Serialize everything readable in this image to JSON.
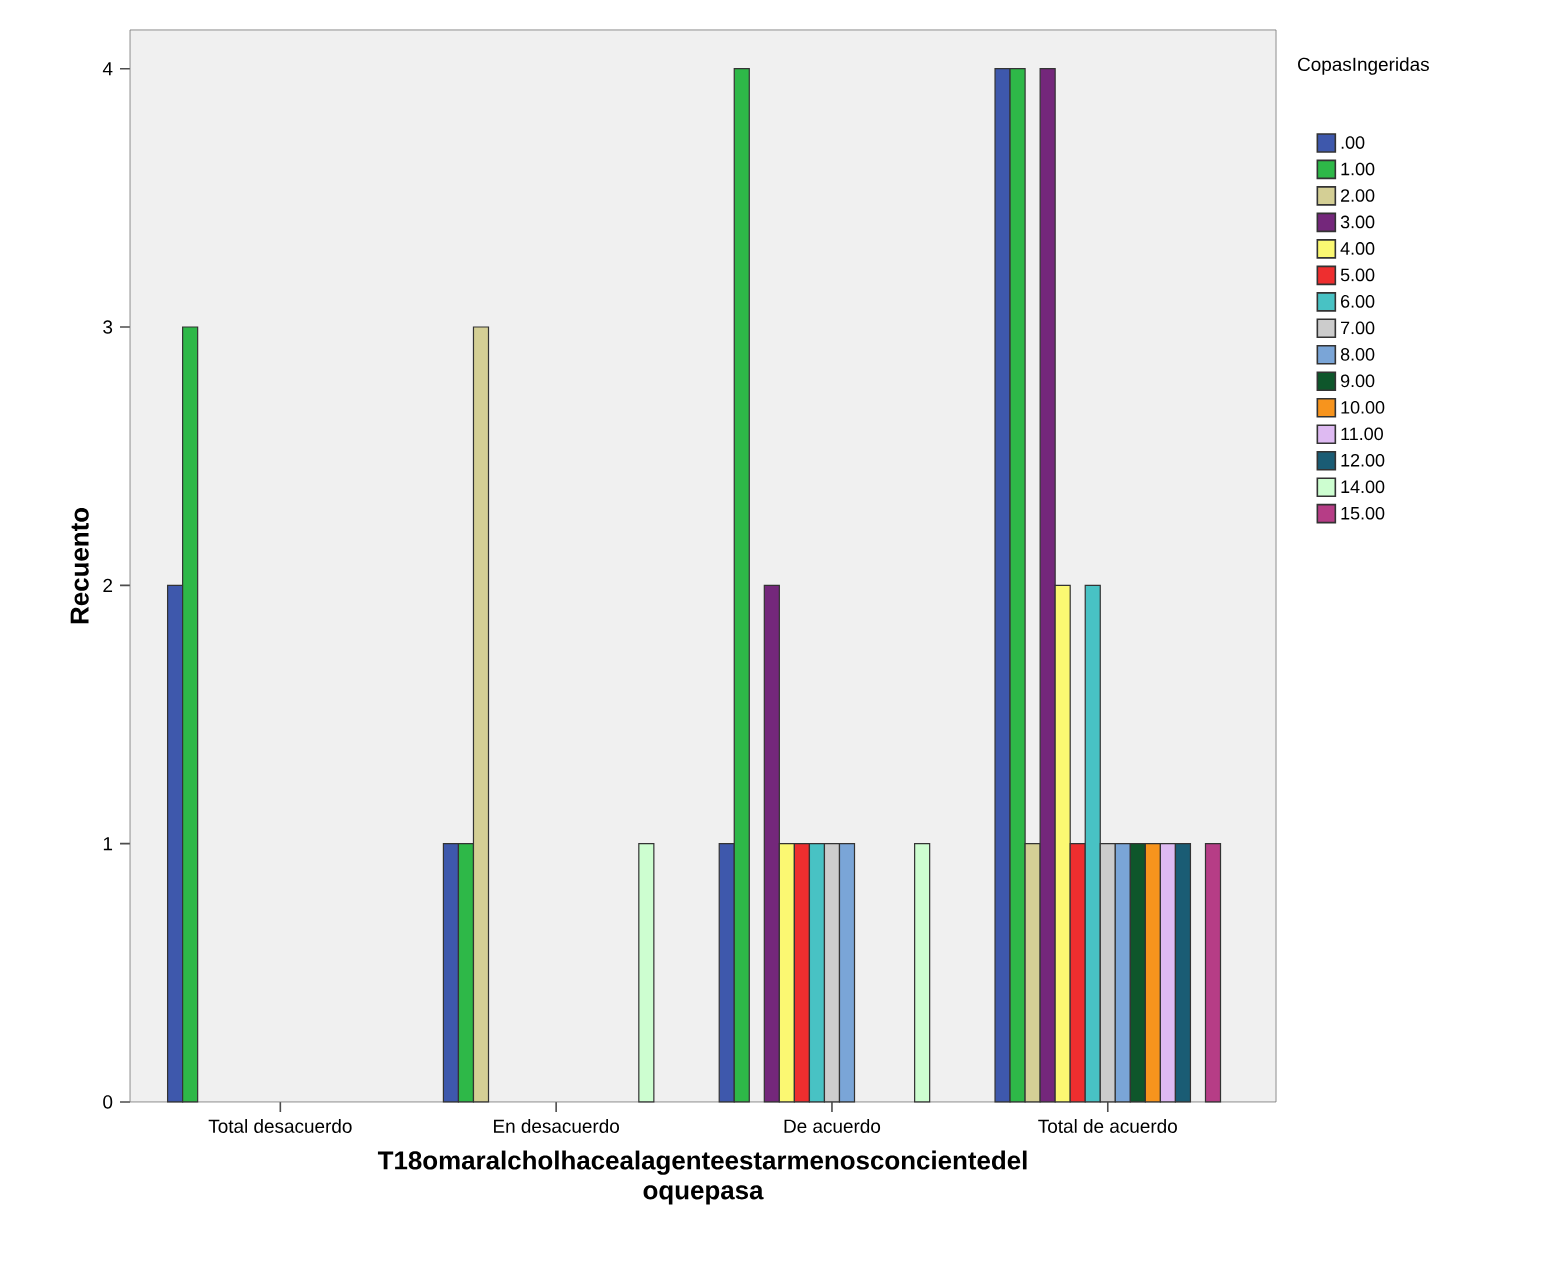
{
  "chart_data": {
    "type": "bar",
    "xlabel": "T18omaralcholhacealagenteestarmenosconcientedel oquepasa",
    "ylabel": "Recuento",
    "legend_title": "CopasIngeridas",
    "categories": [
      "Total desacuerdo",
      "En desacuerdo",
      "De acuerdo",
      "Total de acuerdo"
    ],
    "ylim": [
      0,
      4.15
    ],
    "yticks": [
      0,
      1,
      2,
      3,
      4
    ],
    "legend": "right",
    "grid": false,
    "series": [
      {
        "name": ".00",
        "color": "#3e58ac",
        "values": [
          2,
          1,
          1,
          4
        ]
      },
      {
        "name": "1.00",
        "color": "#2eb848",
        "values": [
          3,
          1,
          4,
          4
        ]
      },
      {
        "name": "2.00",
        "color": "#d4cf95",
        "values": [
          null,
          3,
          null,
          1
        ]
      },
      {
        "name": "3.00",
        "color": "#74277b",
        "values": [
          null,
          null,
          2,
          4
        ]
      },
      {
        "name": "4.00",
        "color": "#fbf872",
        "values": [
          null,
          null,
          1,
          2
        ]
      },
      {
        "name": "5.00",
        "color": "#ee2e2f",
        "values": [
          null,
          null,
          1,
          1
        ]
      },
      {
        "name": "6.00",
        "color": "#48c2c4",
        "values": [
          null,
          null,
          1,
          2
        ]
      },
      {
        "name": "7.00",
        "color": "#cccccc",
        "values": [
          null,
          null,
          1,
          1
        ]
      },
      {
        "name": "8.00",
        "color": "#7aa5d7",
        "values": [
          null,
          null,
          1,
          1
        ]
      },
      {
        "name": "9.00",
        "color": "#0e562b",
        "values": [
          null,
          null,
          null,
          1
        ]
      },
      {
        "name": "10.00",
        "color": "#f7941d",
        "values": [
          null,
          null,
          null,
          1
        ]
      },
      {
        "name": "11.00",
        "color": "#debaf2",
        "values": [
          null,
          null,
          null,
          1
        ]
      },
      {
        "name": "12.00",
        "color": "#1a5c74",
        "values": [
          null,
          null,
          null,
          1
        ]
      },
      {
        "name": "14.00",
        "color": "#cdfed0",
        "values": [
          null,
          1,
          1,
          null
        ]
      },
      {
        "name": "15.00",
        "color": "#b63d86",
        "values": [
          null,
          null,
          null,
          1
        ]
      }
    ]
  }
}
